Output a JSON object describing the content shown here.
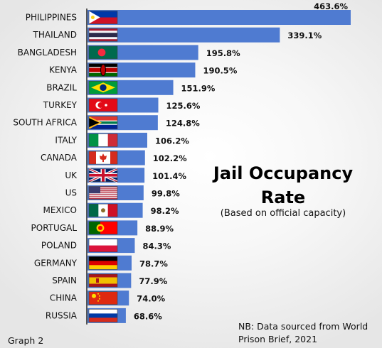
{
  "chart_data": {
    "type": "bar",
    "orientation": "horizontal",
    "title": "Jail Occupancy Rate",
    "subtitle": "(Based on official capacity)",
    "categories": [
      "PHILIPPINES",
      "THAILAND",
      "BANGLADESH",
      "KENYA",
      "BRAZIL",
      "TURKEY",
      "SOUTH AFRICA",
      "ITALY",
      "CANADA",
      "UK",
      "US",
      "MEXICO",
      "PORTUGAL",
      "POLAND",
      "GERMANY",
      "SPAIN",
      "CHINA",
      "RUSSIA"
    ],
    "values": [
      463.6,
      339.1,
      195.8,
      190.5,
      151.9,
      125.6,
      124.8,
      106.2,
      102.2,
      101.4,
      99.8,
      98.2,
      88.9,
      84.3,
      78.7,
      77.9,
      74.0,
      68.6
    ],
    "value_labels": [
      "463.6%",
      "339.1%",
      "195.8%",
      "190.5%",
      "151.9%",
      "125.6%",
      "124.8%",
      "106.2%",
      "102.2%",
      "101.4%",
      "99.8%",
      "98.2%",
      "88.9%",
      "84.3%",
      "78.7%",
      "77.9%",
      "74.0%",
      "68.6%"
    ],
    "unit": "%",
    "bar_color": "#4f7bd1",
    "grid": false,
    "legend": "none"
  },
  "note_line1": "NB: Data sourced from World",
  "note_line2": "Prison Brief, 2021",
  "graph_label": "Graph 2",
  "title_line1": "Jail Occupancy",
  "title_line2": "Rate"
}
